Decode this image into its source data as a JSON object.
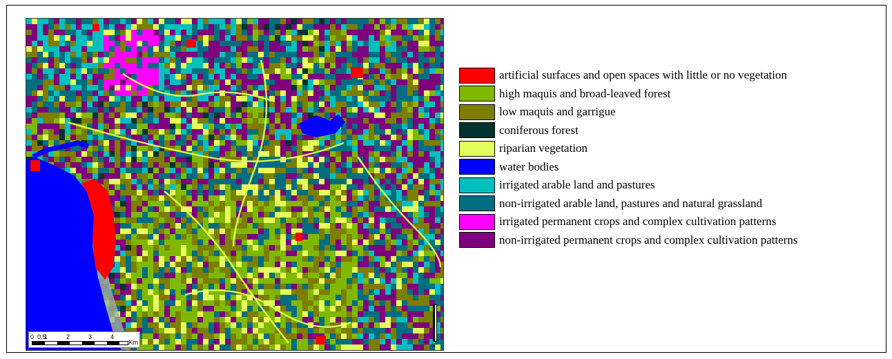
{
  "legend": {
    "items": [
      {
        "label": "artificial surfaces and open spaces with little or no vegetation",
        "color": "#ff0000"
      },
      {
        "label": "high maquis and broad-leaved forest",
        "color": "#80b800"
      },
      {
        "label": "low maquis and garrigue",
        "color": "#7d7d00"
      },
      {
        "label": "coniferous forest",
        "color": "#00322e"
      },
      {
        "label": "riparian vegetation",
        "color": "#e6ff5a"
      },
      {
        "label": "water bodies",
        "color": "#0000ff"
      },
      {
        "label": "irrigated arable land and pastures",
        "color": "#00bfbf"
      },
      {
        "label": "non-irrigated arable land, pastures and natural grassland",
        "color": "#006e80"
      },
      {
        "label": "irrigated permanent crops and complex cultivation patterns",
        "color": "#ff00ff"
      },
      {
        "label": "non-irrigated permanent crops and complex cultivation patterns",
        "color": "#7d007d"
      }
    ]
  },
  "scale_bar": {
    "ticks": [
      "0",
      "0,5",
      "1",
      "2",
      "3",
      "4"
    ],
    "unit": "Km"
  },
  "north_arrow": {
    "label": "N"
  }
}
